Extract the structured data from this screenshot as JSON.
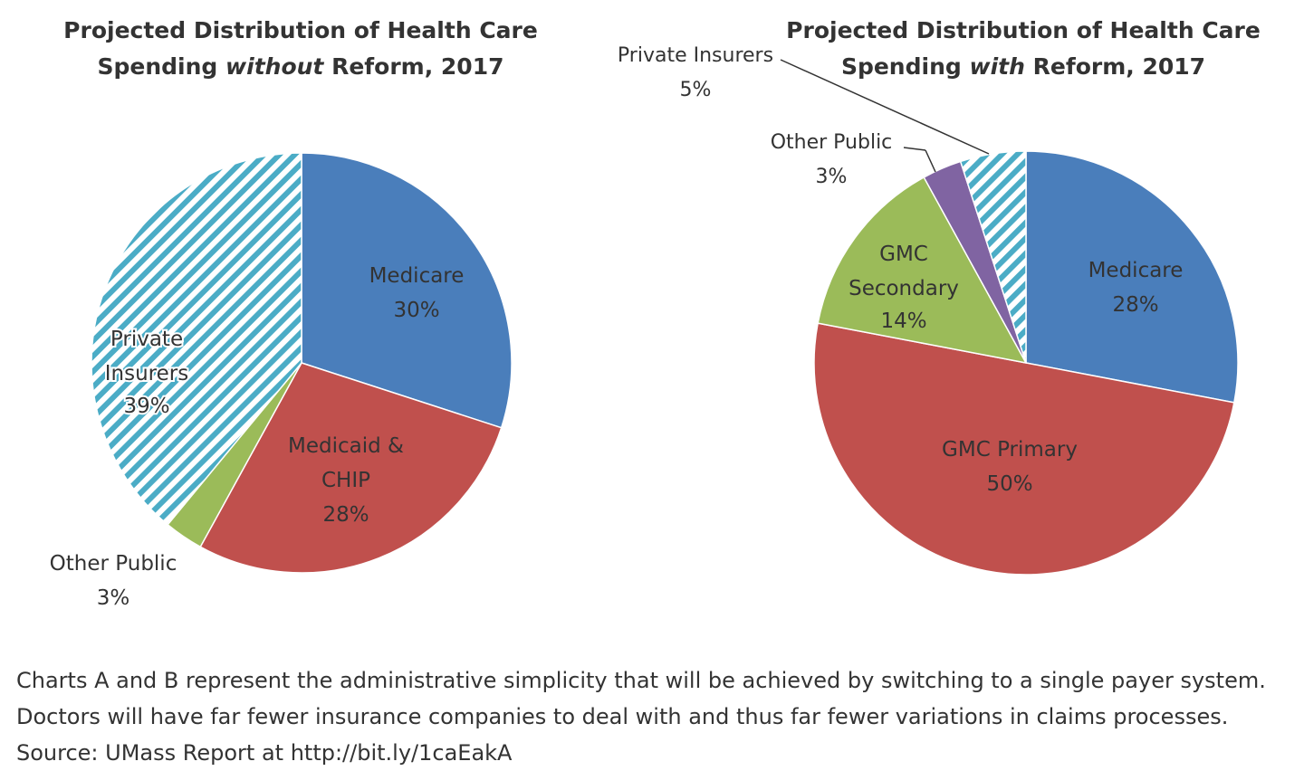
{
  "colors": {
    "medicare": "#4A7EBB",
    "medicaid_gmc_primary": "#C0504D",
    "other_public_a": "#9BBB59",
    "gmc_secondary": "#9BBB59",
    "other_public_b": "#8064A2",
    "private_insurers": "#4BACC6",
    "text": "#333333"
  },
  "chart_data": [
    {
      "type": "pie",
      "title_line1": "Projected Distribution of Health Care",
      "title_line2_pre": "Spending ",
      "title_line2_em": "without",
      "title_line2_post": " Reform, 2017",
      "slices": [
        {
          "label_lines": [
            "Medicare"
          ],
          "value": 30,
          "value_label": "30%",
          "color_key": "medicare"
        },
        {
          "label_lines": [
            "Medicaid &",
            "CHIP"
          ],
          "value": 28,
          "value_label": "28%",
          "color_key": "medicaid_gmc_primary"
        },
        {
          "label_lines": [
            "Other Public"
          ],
          "value": 3,
          "value_label": "3%",
          "color_key": "other_public_a"
        },
        {
          "label_lines": [
            "Private",
            "Insurers"
          ],
          "value": 39,
          "value_label": "39%",
          "color_key": "private_insurers",
          "pattern": "diagonal-stripes"
        }
      ]
    },
    {
      "type": "pie",
      "title_line1": "Projected Distribution of Health Care",
      "title_line2_pre": "Spending ",
      "title_line2_em": "with",
      "title_line2_post": " Reform, 2017",
      "slices": [
        {
          "label_lines": [
            "Medicare"
          ],
          "value": 28,
          "value_label": "28%",
          "color_key": "medicare"
        },
        {
          "label_lines": [
            "GMC Primary"
          ],
          "value": 50,
          "value_label": "50%",
          "color_key": "medicaid_gmc_primary"
        },
        {
          "label_lines": [
            "GMC",
            "Secondary"
          ],
          "value": 14,
          "value_label": "14%",
          "color_key": "gmc_secondary"
        },
        {
          "label_lines": [
            "Other Public"
          ],
          "value": 3,
          "value_label": "3%",
          "color_key": "other_public_b"
        },
        {
          "label_lines": [
            "Private Insurers"
          ],
          "value": 5,
          "value_label": "5%",
          "color_key": "private_insurers",
          "pattern": "diagonal-stripes"
        }
      ]
    }
  ],
  "caption": {
    "line1": "Charts A and B represent the administrative simplicity that will be achieved by switching to a single payer system.",
    "line2": "Doctors will have far fewer insurance companies to deal with and thus far fewer variations in claims processes.",
    "line3": "Source: UMass Report at http://bit.ly/1caEakA"
  }
}
